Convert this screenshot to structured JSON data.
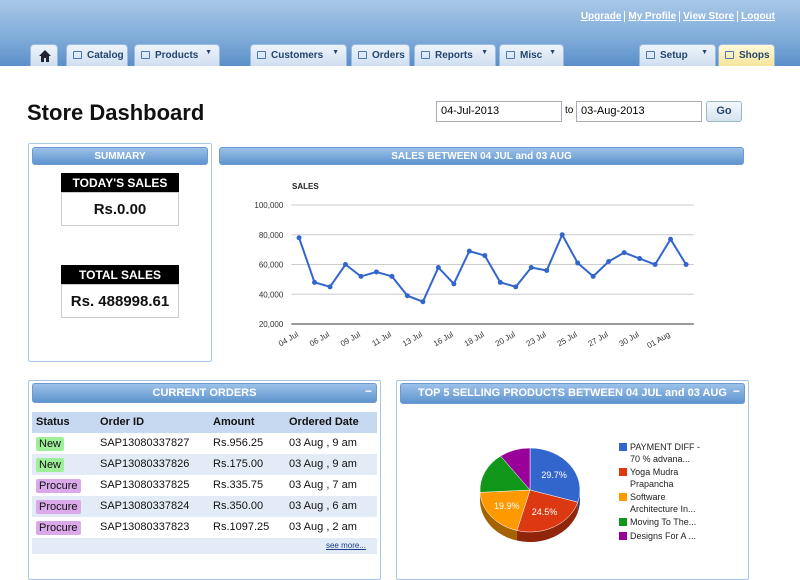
{
  "nav": {
    "links": [
      "Upgrade",
      "My Profile",
      "View Store",
      "Logout"
    ],
    "tabs": [
      "Catalog",
      "Products",
      "Customers",
      "Orders",
      "Reports",
      "Misc",
      "Setup",
      "Shops"
    ]
  },
  "title": "Store Dashboard",
  "date_range": {
    "from": "04-Jul-2013",
    "to_label": "to",
    "to": "03-Aug-2013",
    "button": "Go"
  },
  "summary": {
    "header": "SUMMARY",
    "todays_label": "TODAY'S SALES",
    "todays_value": "Rs.0.00",
    "total_label": "TOTAL SALES",
    "total_value": "Rs. 488998.61"
  },
  "sales_panel": {
    "header": "SALES BETWEEN 04 JUL and 03 AUG"
  },
  "chart_data": [
    {
      "type": "line",
      "title": "SALES",
      "categories": [
        "04 Jul",
        null,
        "06 Jul",
        null,
        "09 Jul",
        null,
        "11 Jul",
        null,
        "13 Jul",
        null,
        "16 Jul",
        null,
        "18 Jul",
        null,
        "20 Jul",
        null,
        "23 Jul",
        null,
        "25 Jul",
        null,
        "27 Jul",
        null,
        "30 Jul",
        null,
        "01 Aug",
        null
      ],
      "series": [
        {
          "name": "SALES",
          "color": "#3366cc",
          "values": [
            78000,
            48000,
            45000,
            60000,
            52000,
            55000,
            52000,
            39000,
            35000,
            58000,
            47000,
            69000,
            66000,
            48000,
            45000,
            58000,
            56000,
            80000,
            61000,
            52000,
            62000,
            68000,
            64000,
            60000,
            77000,
            60000
          ]
        }
      ],
      "ylim": [
        20000,
        100000
      ],
      "yticks": [
        {
          "value": 20000,
          "label": "20,000"
        },
        {
          "value": 40000,
          "label": "40,000"
        },
        {
          "value": 60000,
          "label": "60,000"
        },
        {
          "value": 80000,
          "label": "80,000"
        },
        {
          "value": 100000,
          "label": "100,000"
        }
      ],
      "grid": true
    },
    {
      "type": "pie",
      "title": "TOP 5 SELLING PRODUCTS BETWEEN 04 JUL and 03 AUG",
      "categories": [
        "PAYMENT DIFF - 70 % advana...",
        "Yoga Mudra Prapancha",
        "Software Architecture In...",
        "Moving To The...",
        "Designs For A ..."
      ],
      "values": [
        29.7,
        24.5,
        19.9,
        15.9,
        10
      ],
      "value_labels": [
        "29.7%",
        "24.5%",
        "19.9%",
        null,
        null
      ],
      "colors": [
        "#3366cc",
        "#dc3912",
        "#ff9900",
        "#109618",
        "#990099"
      ],
      "legend": "right"
    }
  ],
  "orders": {
    "header": "CURRENT ORDERS",
    "columns": [
      "Status",
      "Order ID",
      "Amount",
      "Ordered Date"
    ],
    "rows": [
      [
        "New",
        "SAP13080337827",
        "Rs.956.25",
        "03 Aug , 9 am"
      ],
      [
        "New",
        "SAP13080337826",
        "Rs.175.00",
        "03 Aug , 9 am"
      ],
      [
        "Procure",
        "SAP13080337825",
        "Rs.335.75",
        "03 Aug , 7 am"
      ],
      [
        "Procure",
        "SAP13080337824",
        "Rs.350.00",
        "03 Aug , 6 am"
      ],
      [
        "Procure",
        "SAP13080337823",
        "Rs.1097.25",
        "03 Aug , 2 am"
      ]
    ],
    "see_more": "see more..."
  }
}
